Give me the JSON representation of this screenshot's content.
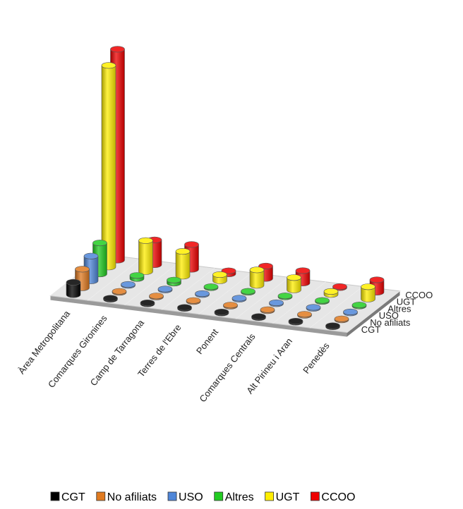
{
  "chart_data": {
    "type": "bar",
    "categories": [
      "Àrea Metropolitana",
      "Comarques Gironines",
      "Camp de Tarragona",
      "Terres de l'Ebre",
      "Ponent",
      "Comarques Centrals",
      "Alt Pirineu i Aran",
      "Penedès"
    ],
    "series": [
      {
        "name": "CGT",
        "color": "#000000",
        "values": [
          4,
          0,
          0,
          0,
          0,
          0,
          0,
          0
        ]
      },
      {
        "name": "No afiliats",
        "color": "#e07a20",
        "values": [
          6,
          0,
          0,
          0,
          0,
          0,
          0,
          0
        ]
      },
      {
        "name": "USO",
        "color": "#4f86d8",
        "values": [
          8,
          0,
          0,
          0,
          0,
          0,
          0,
          0
        ]
      },
      {
        "name": "Altres",
        "color": "#22cc22",
        "values": [
          10,
          1,
          1,
          0,
          0,
          0,
          0,
          0
        ]
      },
      {
        "name": "UGT",
        "color": "#ffee00",
        "values": [
          65,
          10,
          8,
          2,
          5,
          4,
          1,
          4
        ]
      },
      {
        "name": "CCOO",
        "color": "#ee0000",
        "values": [
          68,
          8,
          8,
          1,
          4,
          4,
          0,
          4
        ]
      }
    ],
    "legend_position": "bottom",
    "grid": false
  }
}
